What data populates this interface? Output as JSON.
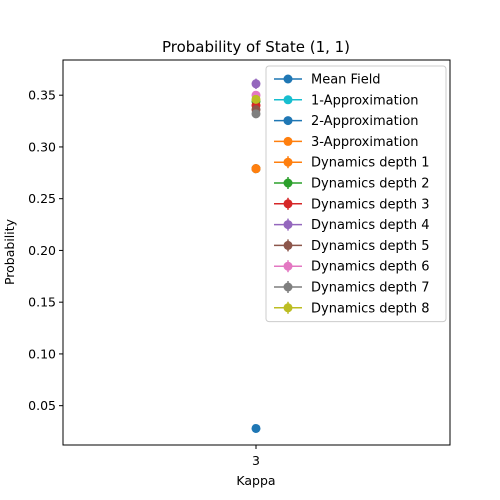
{
  "chart_data": {
    "type": "scatter",
    "title": "Probability of State (1, 1)",
    "xlabel": "Kappa",
    "ylabel": "Probability",
    "categories": [
      "3"
    ],
    "ylim": [
      0.012,
      0.384
    ],
    "yticks": [
      0.05,
      0.1,
      0.15,
      0.2,
      0.25,
      0.3,
      0.35
    ],
    "ytick_labels": [
      "0.05",
      "0.10",
      "0.15",
      "0.20",
      "0.25",
      "0.30",
      "0.35"
    ],
    "legend_position": "top-right",
    "grid": false,
    "series": [
      {
        "name": "Mean Field",
        "color": "#1f77b4",
        "values": [
          0.028
        ],
        "error": 0,
        "errorbar": false
      },
      {
        "name": "1-Approximation",
        "color": "#17becf",
        "values": [
          0.279
        ],
        "error": 0,
        "errorbar": false
      },
      {
        "name": "2-Approximation",
        "color": "#1f77b4",
        "values": [
          0.279
        ],
        "error": 0,
        "errorbar": false
      },
      {
        "name": "3-Approximation",
        "color": "#ff7f0e",
        "values": [
          0.279
        ],
        "error": 0,
        "errorbar": false
      },
      {
        "name": "Dynamics depth 1",
        "color": "#ff7f0e",
        "values": [
          0.279
        ],
        "error": 0.003,
        "errorbar": true
      },
      {
        "name": "Dynamics depth 2",
        "color": "#2ca02c",
        "values": [
          0.344
        ],
        "error": 0.004,
        "errorbar": true
      },
      {
        "name": "Dynamics depth 3",
        "color": "#d62728",
        "values": [
          0.34
        ],
        "error": 0.004,
        "errorbar": true
      },
      {
        "name": "Dynamics depth 4",
        "color": "#9467bd",
        "values": [
          0.361
        ],
        "error": 0.005,
        "errorbar": true
      },
      {
        "name": "Dynamics depth 5",
        "color": "#8c564b",
        "values": [
          0.336
        ],
        "error": 0.004,
        "errorbar": true
      },
      {
        "name": "Dynamics depth 6",
        "color": "#e377c2",
        "values": [
          0.35
        ],
        "error": 0.004,
        "errorbar": true
      },
      {
        "name": "Dynamics depth 7",
        "color": "#7f7f7f",
        "values": [
          0.332
        ],
        "error": 0.004,
        "errorbar": true
      },
      {
        "name": "Dynamics depth 8",
        "color": "#bcbd22",
        "values": [
          0.346
        ],
        "error": 0.004,
        "errorbar": true
      }
    ]
  }
}
